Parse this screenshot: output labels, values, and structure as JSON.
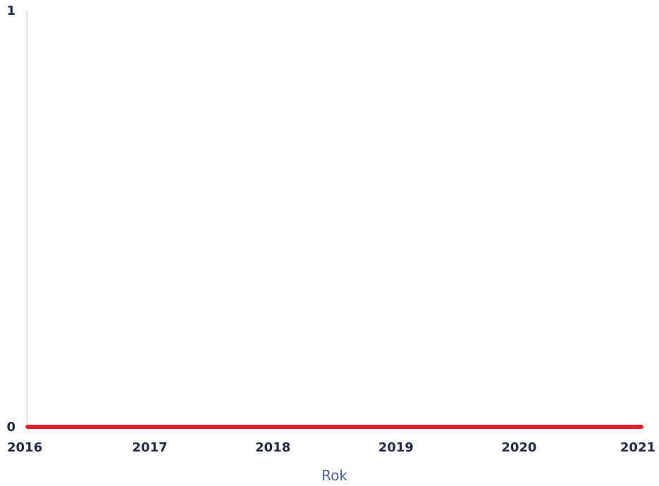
{
  "chart_data": {
    "type": "line",
    "title": "",
    "xlabel": "Rok",
    "ylabel": "",
    "x": [
      2016,
      2017,
      2018,
      2019,
      2020,
      2021
    ],
    "xlim": [
      2016,
      2021
    ],
    "ylim": [
      0,
      1
    ],
    "x_ticks": [
      "2016",
      "2017",
      "2018",
      "2019",
      "2020",
      "2021"
    ],
    "y_ticks": [
      "0",
      "1"
    ],
    "grid": false,
    "series": [
      {
        "values": [
          0,
          0,
          0,
          0,
          0,
          0
        ],
        "color": "#e0202a"
      }
    ]
  },
  "colors": {
    "tick_text": "#222a45",
    "axis_title": "#4a63a8",
    "axis_line": "#e2e2e2"
  }
}
